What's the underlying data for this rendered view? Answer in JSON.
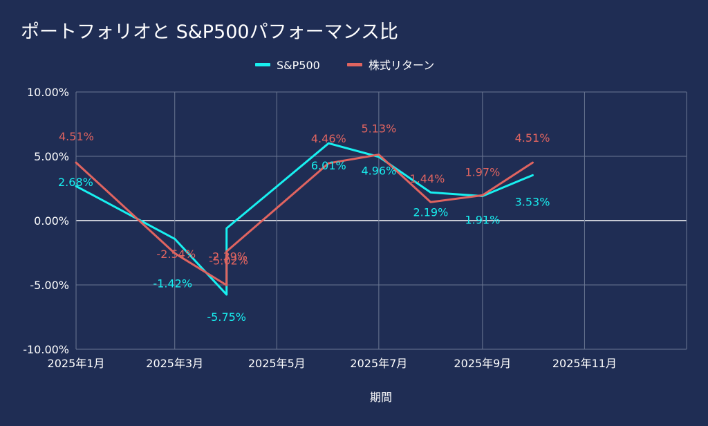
{
  "chart_data": {
    "type": "line",
    "title": "ポートフォリオと S&P500パフォーマンス比",
    "xlabel": "期間",
    "ylabel": "",
    "x_ticks": [
      "2025年1月",
      "2025年3月",
      "2025年5月",
      "2025年7月",
      "2025年9月",
      "2025年11月"
    ],
    "y_ticks": [
      "10.00%",
      "5.00%",
      "0.00%",
      "-5.00%",
      "-10.00%"
    ],
    "ylim": [
      -10,
      10
    ],
    "xlim": [
      "2025-01-01",
      "2026-01-01"
    ],
    "grid": true,
    "legend_position": "top",
    "series": [
      {
        "name": "S&P500",
        "color": "#18f0f0",
        "points": [
          {
            "x": "2025-01-01",
            "y": 2.68,
            "label": "2.68%"
          },
          {
            "x": "2025-03-01",
            "y": -1.42,
            "label": "-1.42%"
          },
          {
            "x": "2025-04-01",
            "y": -5.75,
            "label": "-5.75%"
          },
          {
            "x": "2025-04-01",
            "y": -0.6,
            "label": ""
          },
          {
            "x": "2025-06-01",
            "y": 6.01,
            "label": "6.01%"
          },
          {
            "x": "2025-07-01",
            "y": 4.96,
            "label": "4.96%"
          },
          {
            "x": "2025-08-01",
            "y": 2.19,
            "label": "2.19%"
          },
          {
            "x": "2025-09-01",
            "y": 1.91,
            "label": "1.91%"
          },
          {
            "x": "2025-10-01",
            "y": 3.53,
            "label": "3.53%"
          }
        ]
      },
      {
        "name": "株式リターン",
        "color": "#e06460",
        "points": [
          {
            "x": "2025-01-01",
            "y": 4.51,
            "label": "4.51%"
          },
          {
            "x": "2025-03-01",
            "y": -2.54,
            "label": "-2.54%"
          },
          {
            "x": "2025-04-01",
            "y": -5.02,
            "label": "-5.02%"
          },
          {
            "x": "2025-04-01",
            "y": -2.39,
            "label": "-2.39%"
          },
          {
            "x": "2025-06-01",
            "y": 4.46,
            "label": "4.46%"
          },
          {
            "x": "2025-07-01",
            "y": 5.13,
            "label": "5.13%"
          },
          {
            "x": "2025-08-01",
            "y": 1.44,
            "label": "1.44%"
          },
          {
            "x": "2025-09-01",
            "y": 1.97,
            "label": "1.97%"
          },
          {
            "x": "2025-10-01",
            "y": 4.51,
            "label": "4.51%"
          }
        ]
      }
    ]
  }
}
